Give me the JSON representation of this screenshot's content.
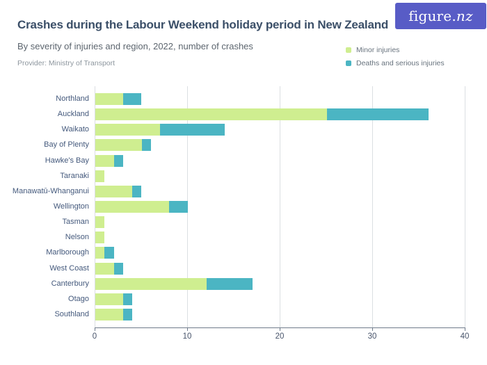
{
  "header": {
    "title": "Crashes during the Labour Weekend holiday period in New Zealand",
    "subtitle": "By severity of injuries and region, 2022, number of crashes",
    "provider": "Provider: Ministry of Transport",
    "logo_text_main": "figure.",
    "logo_text_nz": "nz"
  },
  "legend": {
    "items": [
      {
        "label": "Minor injuries",
        "color": "#cfee90"
      },
      {
        "label": "Deaths and serious injuries",
        "color": "#4bb5c3"
      }
    ]
  },
  "colors": {
    "minor": "#cfee90",
    "severe": "#4bb5c3",
    "logo_bg": "#585cc6",
    "title_text": "#3b4f68",
    "grid": "#dbdfe2",
    "axis": "#6f7b8b"
  },
  "chart_data": {
    "type": "bar",
    "orientation": "horizontal",
    "stacked": true,
    "title": "Crashes during the Labour Weekend holiday period in New Zealand",
    "subtitle": "By severity of injuries and region, 2022, number of crashes",
    "categories": [
      "Northland",
      "Auckland",
      "Waikato",
      "Bay of Plenty",
      "Hawke's Bay",
      "Taranaki",
      "Manawatū-Whanganui",
      "Wellington",
      "Tasman",
      "Nelson",
      "Marlborough",
      "West Coast",
      "Canterbury",
      "Otago",
      "Southland"
    ],
    "series": [
      {
        "name": "Minor injuries",
        "color": "#cfee90",
        "values": [
          3,
          25,
          7,
          5,
          2,
          1,
          4,
          8,
          1,
          1,
          1,
          2,
          12,
          3,
          3
        ]
      },
      {
        "name": "Deaths and serious injuries",
        "color": "#4bb5c3",
        "values": [
          2,
          11,
          7,
          1,
          1,
          0,
          1,
          2,
          0,
          0,
          1,
          1,
          5,
          1,
          1
        ]
      }
    ],
    "totals": [
      5,
      36,
      14,
      6,
      3,
      1,
      5,
      10,
      1,
      1,
      2,
      3,
      17,
      4,
      4
    ],
    "xlabel": "",
    "ylabel": "",
    "xlim": [
      0,
      40
    ],
    "xticks": [
      0,
      10,
      20,
      30,
      40
    ],
    "grid": "vertical",
    "legend_position": "top-right"
  }
}
